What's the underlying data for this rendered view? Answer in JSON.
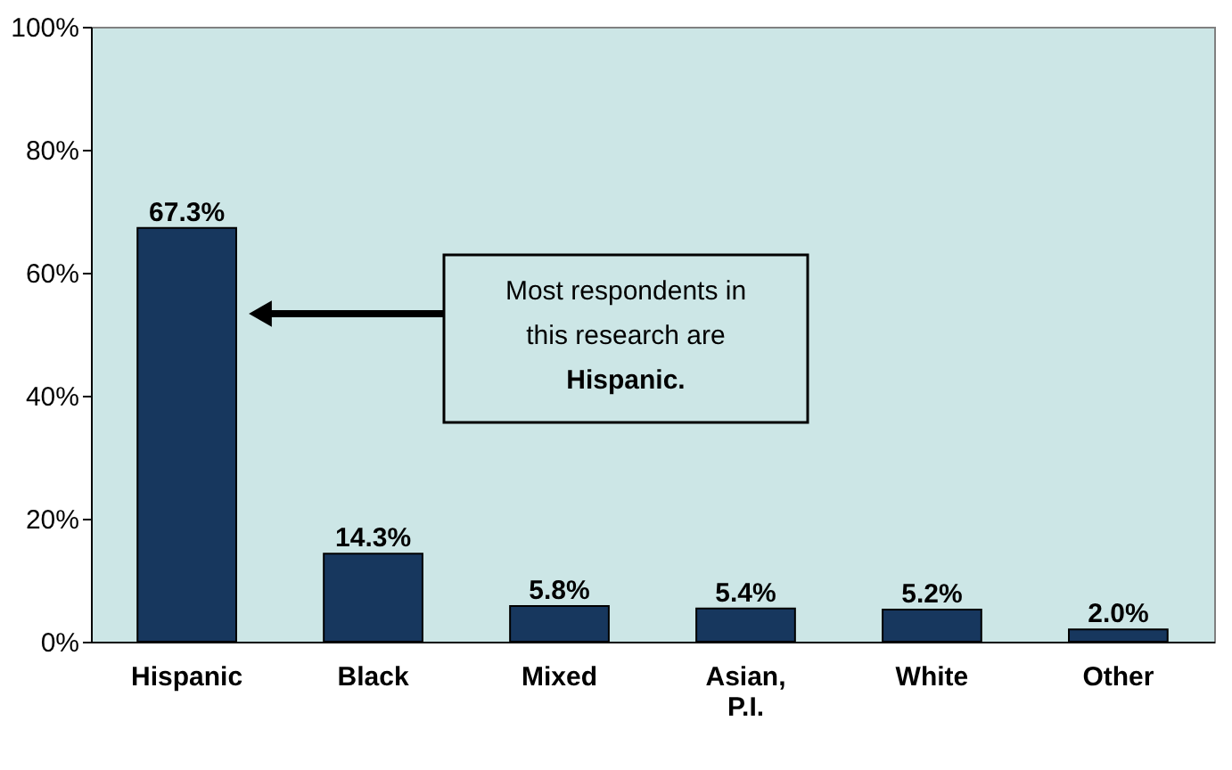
{
  "chart_data": {
    "type": "bar",
    "categories": [
      "Hispanic",
      "Black",
      "Mixed",
      "Asian,\nP.I.",
      "White",
      "Other"
    ],
    "values": [
      67.3,
      14.3,
      5.8,
      5.4,
      5.2,
      2.0
    ],
    "color": "#17375e",
    "value_labels": [
      "67.3%",
      "14.3%",
      "5.8%",
      "5.4%",
      "5.2%",
      "2.0%"
    ],
    "ylim": [
      0,
      100
    ],
    "yticks": [
      {
        "value": 0,
        "label": "0%"
      },
      {
        "value": 20,
        "label": "20%"
      },
      {
        "value": 40,
        "label": "40%"
      },
      {
        "value": 60,
        "label": "60%"
      },
      {
        "value": 80,
        "label": "80%"
      },
      {
        "value": 100,
        "label": "100%"
      }
    ],
    "grid": false,
    "annotations": [
      "Most respondents in\nthis research are\nHispanic."
    ]
  }
}
